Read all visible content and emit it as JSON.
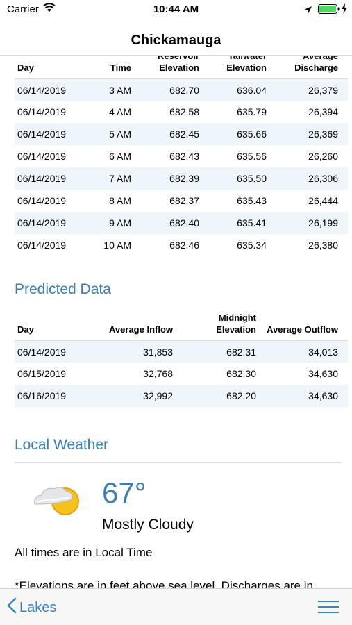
{
  "status_bar": {
    "carrier": "Carrier",
    "time": "10:44 AM"
  },
  "nav": {
    "title": "Chickamauga"
  },
  "observed": {
    "headers": [
      "Day",
      "Time",
      "Reservoir Elevation",
      "Tailwater Elevation",
      "Average Discharge"
    ],
    "rows": [
      [
        "06/14/2019",
        "3 AM",
        "682.70",
        "636.04",
        "26,379"
      ],
      [
        "06/14/2019",
        "4 AM",
        "682.58",
        "635.79",
        "26,394"
      ],
      [
        "06/14/2019",
        "5 AM",
        "682.45",
        "635.66",
        "26,369"
      ],
      [
        "06/14/2019",
        "6 AM",
        "682.43",
        "635.56",
        "26,260"
      ],
      [
        "06/14/2019",
        "7 AM",
        "682.39",
        "635.50",
        "26,306"
      ],
      [
        "06/14/2019",
        "8 AM",
        "682.37",
        "635.43",
        "26,444"
      ],
      [
        "06/14/2019",
        "9 AM",
        "682.40",
        "635.41",
        "26,199"
      ],
      [
        "06/14/2019",
        "10 AM",
        "682.46",
        "635.34",
        "26,380"
      ]
    ]
  },
  "predicted": {
    "heading": "Predicted Data",
    "headers": [
      "Day",
      "Average Inflow",
      "Midnight Elevation",
      "Average Outflow"
    ],
    "rows": [
      [
        "06/14/2019",
        "31,853",
        "682.31",
        "34,013"
      ],
      [
        "06/15/2019",
        "32,768",
        "682.30",
        "34,630"
      ],
      [
        "06/16/2019",
        "32,992",
        "682.20",
        "34,630"
      ]
    ]
  },
  "weather": {
    "heading": "Local Weather",
    "icon": "partly-cloudy-icon",
    "temperature": "67°",
    "condition": "Mostly Cloudy"
  },
  "notes": {
    "times": "All times are in Local Time",
    "elevations": "*Elevations are in feet above sea level. Discharges are in"
  },
  "toolbar": {
    "back_label": "Lakes",
    "menu_icon": "hamburger-menu-icon"
  },
  "colors": {
    "accent": "#3a7eb6",
    "link": "#3b82c4",
    "row_stripe": "#eef5fb",
    "battery": "#4cd964"
  }
}
